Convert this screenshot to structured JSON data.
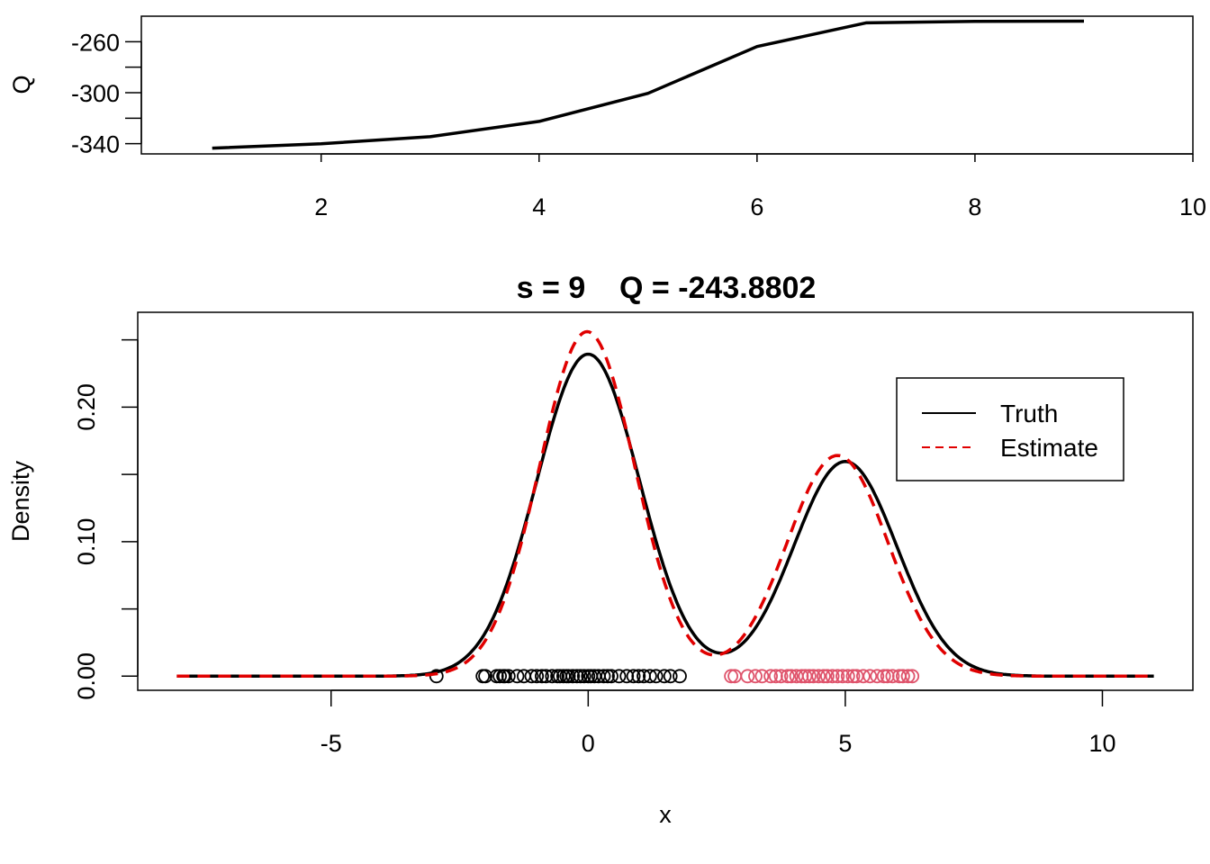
{
  "chart_data": [
    {
      "type": "line",
      "title": "",
      "xlabel": "",
      "ylabel": "Q",
      "xlim": [
        0.35,
        10.0
      ],
      "ylim": [
        -348,
        -240
      ],
      "xticks": [
        2,
        4,
        6,
        8,
        10
      ],
      "yticks": [
        -340,
        -320,
        -300,
        -280,
        -260
      ],
      "ytick_labels": [
        "-340",
        "",
        "-300",
        "",
        "-260"
      ],
      "series": [
        {
          "name": "",
          "x": [
            1,
            2,
            3,
            4,
            5,
            6,
            7,
            8,
            9
          ],
          "y": [
            -343.5,
            -340.0,
            -334.5,
            -322.5,
            -300.5,
            -263.8,
            -245.2,
            -244.0,
            -243.9
          ],
          "color": "#000000"
        }
      ]
    },
    {
      "type": "line",
      "title": "s = 9    Q = -243.8802",
      "xlabel": "x",
      "ylabel": "Density",
      "xlim": [
        -8.76,
        11.76
      ],
      "ylim": [
        -0.0105,
        0.2705
      ],
      "xticks": [
        -5,
        0,
        5,
        10
      ],
      "yticks": [
        0.0,
        0.05,
        0.1,
        0.15,
        0.2,
        0.25
      ],
      "ytick_labels": [
        "0.00",
        "",
        "0.10",
        "",
        "0.20",
        ""
      ],
      "legend": {
        "position": "top-right",
        "entries": [
          {
            "label": "Truth",
            "color": "#000000",
            "dash": "solid"
          },
          {
            "label": "Estimate",
            "color": "#e00000",
            "dash": "dashed"
          }
        ]
      },
      "series": [
        {
          "name": "Truth",
          "color": "#000000",
          "dash": "solid",
          "components": [
            {
              "weight": 0.6,
              "mean": 0,
              "sd": 1
            },
            {
              "weight": 0.4,
              "mean": 5,
              "sd": 1
            }
          ]
        },
        {
          "name": "Estimate",
          "color": "#e00000",
          "dash": "dashed",
          "components": [
            {
              "weight": 0.597,
              "mean": -0.02,
              "sd": 0.93
            },
            {
              "weight": 0.403,
              "mean": 4.85,
              "sd": 0.98
            }
          ]
        }
      ],
      "observations": [
        {
          "color": "#000000",
          "y": 0,
          "x": [
            -2.95,
            -2.05,
            -2.0,
            -1.78,
            -1.72,
            -1.65,
            -1.62,
            -1.55,
            -1.38,
            -1.25,
            -1.1,
            -1.0,
            -0.9,
            -0.82,
            -0.7,
            -0.6,
            -0.55,
            -0.48,
            -0.42,
            -0.38,
            -0.3,
            -0.22,
            -0.15,
            -0.08,
            0.0,
            0.05,
            0.12,
            0.2,
            0.3,
            0.38,
            0.45,
            0.6,
            0.75,
            0.88,
            0.98,
            1.08,
            1.2,
            1.32,
            1.48,
            1.6,
            1.78
          ]
        },
        {
          "color": "#df536b",
          "y": 0,
          "x": [
            2.78,
            2.85,
            3.1,
            3.25,
            3.38,
            3.55,
            3.65,
            3.75,
            3.88,
            3.95,
            4.05,
            4.15,
            4.22,
            4.3,
            4.38,
            4.48,
            4.58,
            4.65,
            4.75,
            4.85,
            4.95,
            5.05,
            5.15,
            5.22,
            5.35,
            5.48,
            5.62,
            5.75,
            5.82,
            5.92,
            6.05,
            6.12,
            6.22,
            6.3
          ]
        }
      ]
    }
  ]
}
